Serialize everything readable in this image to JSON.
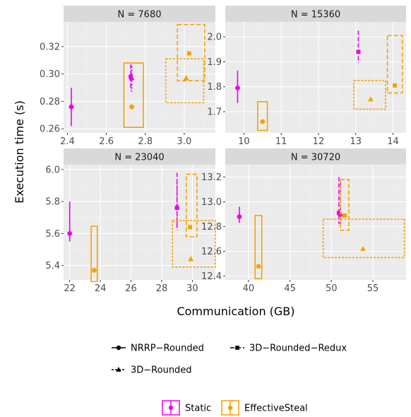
{
  "chart_data": {
    "type": "scatter",
    "xlabel": "Communication (GB)",
    "ylabel": "Execution time (s)",
    "colors": {
      "Static": "#ee00ee",
      "EffectiveSteal": "#f5a100"
    },
    "legend_placement": "bottom",
    "shape_legend": [
      {
        "name": "NRRP−Rounded",
        "shape": "circle",
        "linetype": "solid"
      },
      {
        "name": "3D−Rounded−Redux",
        "shape": "square",
        "linetype": "longdash"
      },
      {
        "name": "3D−Rounded",
        "shape": "triangle",
        "linetype": "dotted"
      }
    ],
    "color_legend": [
      "Static",
      "EffectiveSteal"
    ],
    "panels": [
      {
        "title": "N = 7680",
        "xlim": [
          2.38,
          3.16
        ],
        "ylim": [
          0.257,
          0.338
        ],
        "xticks": [
          2.4,
          2.6,
          2.8,
          3.0
        ],
        "xtick_labels": [
          "2.4",
          "2.6",
          "2.8",
          "3.0"
        ],
        "yticks": [
          0.26,
          0.28,
          0.3,
          0.32
        ],
        "ytick_labels": [
          "0.26",
          "0.28",
          "0.30",
          "0.32"
        ],
        "points": [
          {
            "variant": "NRRP−Rounded",
            "strategy": "Static",
            "x": 2.42,
            "y": 0.276,
            "xmin": 2.42,
            "xmax": 2.42,
            "ymin": 0.262,
            "ymax": 0.29
          },
          {
            "variant": "3D−Rounded−Redux",
            "strategy": "Static",
            "x": 2.725,
            "y": 0.298,
            "xmin": 2.725,
            "xmax": 2.725,
            "ymin": 0.288,
            "ymax": 0.307
          },
          {
            "variant": "3D−Rounded",
            "strategy": "Static",
            "x": 2.73,
            "y": 0.297,
            "xmin": 2.73,
            "xmax": 2.73,
            "ymin": 0.287,
            "ymax": 0.306
          },
          {
            "variant": "NRRP−Rounded",
            "strategy": "EffectiveSteal",
            "x": 2.73,
            "y": 0.276,
            "xmin": 2.69,
            "xmax": 2.79,
            "ymin": 0.261,
            "ymax": 0.308
          },
          {
            "variant": "3D−Rounded−Redux",
            "strategy": "EffectiveSteal",
            "x": 3.025,
            "y": 0.315,
            "xmin": 2.965,
            "xmax": 3.105,
            "ymin": 0.295,
            "ymax": 0.336
          },
          {
            "variant": "3D−Rounded",
            "strategy": "EffectiveSteal",
            "x": 3.01,
            "y": 0.297,
            "xmin": 2.905,
            "xmax": 3.1,
            "ymin": 0.279,
            "ymax": 0.311
          }
        ]
      },
      {
        "title": "N = 15360",
        "xlim": [
          9.5,
          14.35
        ],
        "ylim": [
          1.615,
          2.06
        ],
        "xticks": [
          10,
          11,
          12,
          13,
          14
        ],
        "xtick_labels": [
          "10",
          "11",
          "12",
          "13",
          "14"
        ],
        "yticks": [
          1.7,
          1.8,
          1.9,
          2.0
        ],
        "ytick_labels": [
          "1.7",
          "1.8",
          "1.9",
          "2.0"
        ],
        "points": [
          {
            "variant": "NRRP−Rounded",
            "strategy": "Static",
            "x": 9.83,
            "y": 1.795,
            "xmin": 9.83,
            "xmax": 9.83,
            "ymin": 1.735,
            "ymax": 1.865
          },
          {
            "variant": "3D−Rounded−Redux",
            "strategy": "Static",
            "x": 13.07,
            "y": 1.94,
            "xmin": 13.07,
            "xmax": 13.07,
            "ymin": 1.895,
            "ymax": 2.025
          },
          {
            "variant": "NRRP−Rounded",
            "strategy": "EffectiveSteal",
            "x": 10.5,
            "y": 1.66,
            "xmin": 10.37,
            "xmax": 10.63,
            "ymin": 1.625,
            "ymax": 1.74
          },
          {
            "variant": "3D−Rounded",
            "strategy": "EffectiveSteal",
            "x": 13.4,
            "y": 1.75,
            "xmin": 12.95,
            "xmax": 13.8,
            "ymin": 1.71,
            "ymax": 1.825
          },
          {
            "variant": "3D−Rounded−Redux",
            "strategy": "EffectiveSteal",
            "x": 14.05,
            "y": 1.805,
            "xmin": 13.85,
            "xmax": 14.25,
            "ymin": 1.775,
            "ymax": 2.005
          }
        ]
      },
      {
        "title": "N = 23040",
        "xlim": [
          21.6,
          31.5
        ],
        "ylim": [
          5.31,
          6.03
        ],
        "xticks": [
          22,
          24,
          26,
          28,
          30
        ],
        "xtick_labels": [
          "22",
          "24",
          "26",
          "28",
          "30"
        ],
        "yticks": [
          5.4,
          5.6,
          5.8,
          6.0
        ],
        "ytick_labels": [
          "5.4",
          "5.6",
          "5.8",
          "6.0"
        ],
        "points": [
          {
            "variant": "NRRP−Rounded",
            "strategy": "Static",
            "x": 22.0,
            "y": 5.6,
            "xmin": 22.0,
            "xmax": 22.0,
            "ymin": 5.55,
            "ymax": 5.8
          },
          {
            "variant": "3D−Rounded−Redux",
            "strategy": "Static",
            "x": 29.0,
            "y": 5.76,
            "xmin": 29.0,
            "xmax": 29.0,
            "ymin": 5.62,
            "ymax": 5.98
          },
          {
            "variant": "3D−Rounded",
            "strategy": "Static",
            "x": 29.0,
            "y": 5.77,
            "xmin": 29.0,
            "xmax": 29.0,
            "ymin": 5.63,
            "ymax": 5.94
          },
          {
            "variant": "NRRP−Rounded",
            "strategy": "EffectiveSteal",
            "x": 23.6,
            "y": 5.37,
            "xmin": 23.4,
            "xmax": 23.8,
            "ymin": 5.3,
            "ymax": 5.645
          },
          {
            "variant": "3D−Rounded−Redux",
            "strategy": "EffectiveSteal",
            "x": 29.85,
            "y": 5.64,
            "xmin": 29.6,
            "xmax": 30.3,
            "ymin": 5.58,
            "ymax": 5.97
          },
          {
            "variant": "3D−Rounded",
            "strategy": "EffectiveSteal",
            "x": 29.9,
            "y": 5.44,
            "xmin": 28.7,
            "xmax": 31.5,
            "ymin": 5.39,
            "ymax": 5.68
          }
        ]
      },
      {
        "title": "N = 30720",
        "xlim": [
          37.2,
          59.0
        ],
        "ylim": [
          12.37,
          13.3
        ],
        "xticks": [
          40,
          45,
          50,
          55
        ],
        "xtick_labels": [
          "40",
          "45",
          "50",
          "55"
        ],
        "yticks": [
          12.4,
          12.6,
          12.8,
          13.0,
          13.2
        ],
        "ytick_labels": [
          "12.4",
          "12.6",
          "12.8",
          "13.0",
          "13.2"
        ],
        "points": [
          {
            "variant": "NRRP−Rounded",
            "strategy": "Static",
            "x": 38.9,
            "y": 12.88,
            "xmin": 38.9,
            "xmax": 38.9,
            "ymin": 12.83,
            "ymax": 12.96
          },
          {
            "variant": "3D−Rounded−Redux",
            "strategy": "Static",
            "x": 50.9,
            "y": 12.91,
            "xmin": 50.9,
            "xmax": 50.9,
            "ymin": 12.82,
            "ymax": 13.2
          },
          {
            "variant": "3D−Rounded",
            "strategy": "Static",
            "x": 51.1,
            "y": 12.9,
            "xmin": 51.1,
            "xmax": 51.1,
            "ymin": 12.82,
            "ymax": 13.15
          },
          {
            "variant": "NRRP−Rounded",
            "strategy": "EffectiveSteal",
            "x": 41.2,
            "y": 12.48,
            "xmin": 40.8,
            "xmax": 41.6,
            "ymin": 12.38,
            "ymax": 12.89
          },
          {
            "variant": "3D−Rounded−Redux",
            "strategy": "EffectiveSteal",
            "x": 51.6,
            "y": 12.89,
            "xmin": 51.1,
            "xmax": 52.1,
            "ymin": 12.77,
            "ymax": 13.18
          },
          {
            "variant": "3D−Rounded",
            "strategy": "EffectiveSteal",
            "x": 53.8,
            "y": 12.62,
            "xmin": 49.0,
            "xmax": 58.8,
            "ymin": 12.55,
            "ymax": 12.86
          }
        ]
      }
    ]
  }
}
